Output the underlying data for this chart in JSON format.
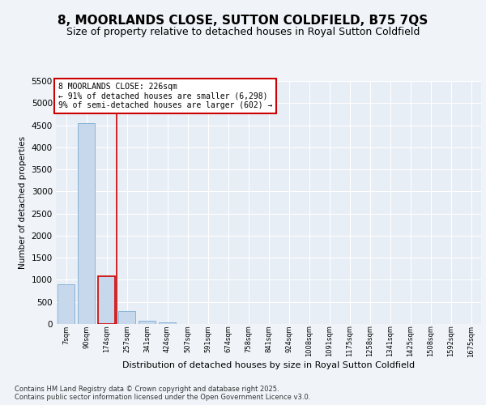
{
  "title1": "8, MOORLANDS CLOSE, SUTTON COLDFIELD, B75 7QS",
  "title2": "Size of property relative to detached houses in Royal Sutton Coldfield",
  "xlabel": "Distribution of detached houses by size in Royal Sutton Coldfield",
  "ylabel": "Number of detached properties",
  "categories": [
    "7sqm",
    "90sqm",
    "174sqm",
    "257sqm",
    "341sqm",
    "424sqm",
    "507sqm",
    "591sqm",
    "674sqm",
    "758sqm",
    "841sqm",
    "924sqm",
    "1008sqm",
    "1091sqm",
    "1175sqm",
    "1258sqm",
    "1341sqm",
    "1425sqm",
    "1508sqm",
    "1592sqm",
    "1675sqm"
  ],
  "values": [
    900,
    4550,
    1080,
    290,
    70,
    30,
    5,
    2,
    0,
    0,
    0,
    0,
    0,
    0,
    0,
    0,
    0,
    0,
    0,
    0,
    0
  ],
  "bar_color": "#c8d8ec",
  "bar_edge_color": "#7aaad0",
  "highlight_bar_index": 2,
  "highlight_bar_edge_color": "#cc0000",
  "vline_color": "#cc0000",
  "annotation_text": "8 MOORLANDS CLOSE: 226sqm\n← 91% of detached houses are smaller (6,298)\n9% of semi-detached houses are larger (602) →",
  "annotation_box_color": "#ffffff",
  "annotation_box_edge_color": "#cc0000",
  "ylim": [
    0,
    5500
  ],
  "yticks": [
    0,
    500,
    1000,
    1500,
    2000,
    2500,
    3000,
    3500,
    4000,
    4500,
    5000,
    5500
  ],
  "footer": "Contains HM Land Registry data © Crown copyright and database right 2025.\nContains public sector information licensed under the Open Government Licence v3.0.",
  "bg_color": "#f0f4f8",
  "plot_bg_color": "#e8eef6",
  "grid_color": "#ffffff",
  "title1_fontsize": 11,
  "title2_fontsize": 9
}
